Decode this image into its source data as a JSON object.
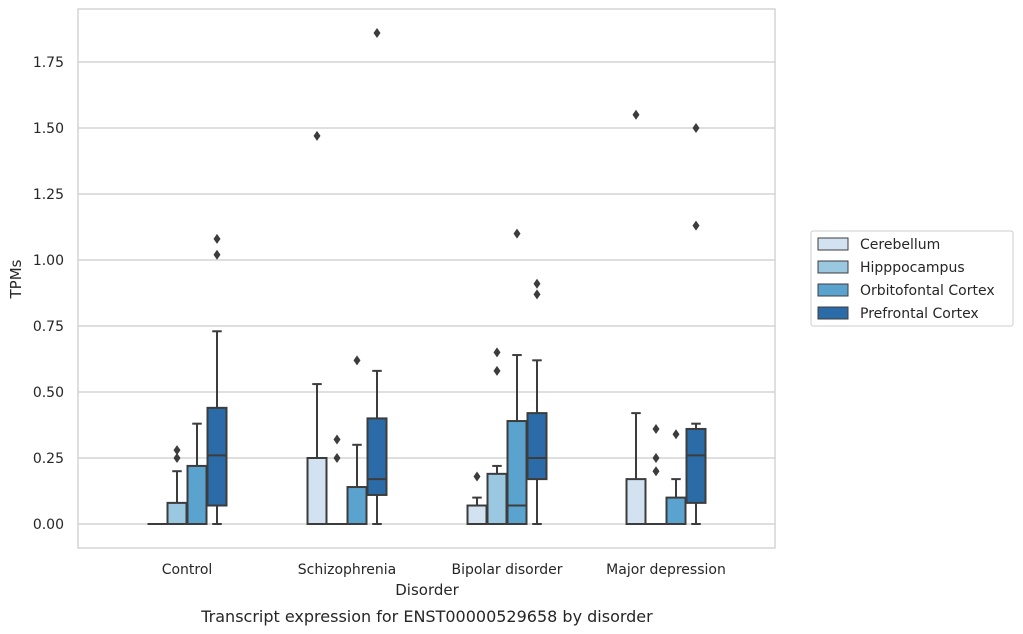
{
  "chart_data": {
    "type": "box",
    "title": "",
    "caption": "Transcript expression for ENST00000529658 by disorder",
    "xlabel": "Disorder",
    "ylabel": "TPMs",
    "ylim": [
      -0.09,
      1.96
    ],
    "yticks": [
      "0.00",
      "0.25",
      "0.50",
      "0.75",
      "1.00",
      "1.25",
      "1.50",
      "1.75"
    ],
    "grid": "horizontal",
    "legend_position": "right",
    "categories": [
      "Control",
      "Schizophrenia",
      "Bipolar disorder",
      "Major depression"
    ],
    "series": [
      {
        "name": "Cerebellum",
        "color": "#d2e2f1",
        "boxes": [
          {
            "low": 0.0,
            "q1": 0.0,
            "median": 0.0,
            "q3": 0.0,
            "high": 0.0,
            "outliers": []
          },
          {
            "low": 0.0,
            "q1": 0.0,
            "median": 0.0,
            "q3": 0.25,
            "high": 0.53,
            "outliers": [
              1.47
            ]
          },
          {
            "low": 0.0,
            "q1": 0.0,
            "median": 0.0,
            "q3": 0.07,
            "high": 0.1,
            "outliers": [
              0.18
            ]
          },
          {
            "low": 0.0,
            "q1": 0.0,
            "median": 0.0,
            "q3": 0.17,
            "high": 0.42,
            "outliers": [
              1.55
            ]
          }
        ]
      },
      {
        "name": "Hipppocampus",
        "color": "#9ac8e0",
        "boxes": [
          {
            "low": 0.0,
            "q1": 0.0,
            "median": 0.0,
            "q3": 0.08,
            "high": 0.2,
            "outliers": [
              0.25,
              0.28
            ]
          },
          {
            "low": 0.0,
            "q1": 0.0,
            "median": 0.0,
            "q3": 0.0,
            "high": 0.0,
            "outliers": [
              0.25,
              0.32
            ]
          },
          {
            "low": 0.0,
            "q1": 0.0,
            "median": 0.0,
            "q3": 0.19,
            "high": 0.22,
            "outliers": [
              0.58,
              0.65
            ]
          },
          {
            "low": 0.0,
            "q1": 0.0,
            "median": 0.0,
            "q3": 0.0,
            "high": 0.0,
            "outliers": [
              0.2,
              0.25,
              0.36
            ]
          }
        ]
      },
      {
        "name": "Orbitofontal Cortex",
        "color": "#5ba3cf",
        "boxes": [
          {
            "low": 0.0,
            "q1": 0.0,
            "median": 0.0,
            "q3": 0.22,
            "high": 0.38,
            "outliers": []
          },
          {
            "low": 0.0,
            "q1": 0.0,
            "median": 0.0,
            "q3": 0.14,
            "high": 0.3,
            "outliers": [
              0.62
            ]
          },
          {
            "low": 0.0,
            "q1": 0.0,
            "median": 0.07,
            "q3": 0.39,
            "high": 0.64,
            "outliers": [
              1.1
            ]
          },
          {
            "low": 0.0,
            "q1": 0.0,
            "median": 0.0,
            "q3": 0.1,
            "high": 0.17,
            "outliers": [
              0.34
            ]
          }
        ]
      },
      {
        "name": "Prefrontal Cortex",
        "color": "#2b6ca8",
        "boxes": [
          {
            "low": 0.0,
            "q1": 0.07,
            "median": 0.26,
            "q3": 0.44,
            "high": 0.73,
            "outliers": [
              1.02,
              1.08
            ]
          },
          {
            "low": 0.0,
            "q1": 0.11,
            "median": 0.17,
            "q3": 0.4,
            "high": 0.58,
            "outliers": [
              1.86
            ]
          },
          {
            "low": 0.0,
            "q1": 0.17,
            "median": 0.25,
            "q3": 0.42,
            "high": 0.62,
            "outliers": [
              0.87,
              0.91
            ]
          },
          {
            "low": 0.0,
            "q1": 0.08,
            "median": 0.26,
            "q3": 0.36,
            "high": 0.38,
            "outliers": [
              1.13,
              1.5
            ]
          }
        ]
      }
    ]
  }
}
